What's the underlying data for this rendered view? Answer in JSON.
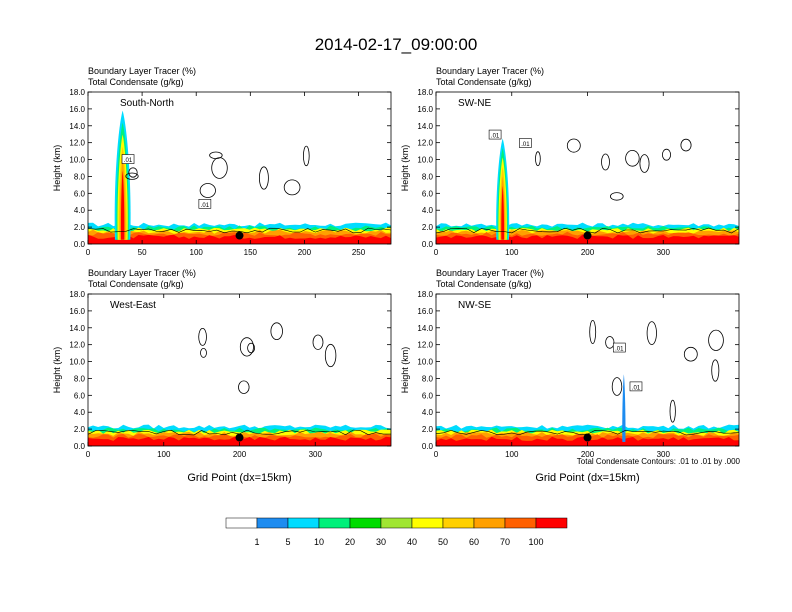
{
  "title": "2014-02-17_09:00:00",
  "contour_note": "Total Condensate Contours: .01 to .01 by .000",
  "colorbar": {
    "colors": [
      "#ffffff",
      "#1e8cf0",
      "#00dcff",
      "#00f07a",
      "#00dc00",
      "#a0e632",
      "#ffff00",
      "#ffd000",
      "#ffa000",
      "#ff6000",
      "#ff0000"
    ],
    "labels": [
      "1",
      "5",
      "10",
      "20",
      "30",
      "40",
      "50",
      "60",
      "70",
      "100"
    ]
  },
  "chart_data": [
    {
      "type": "heatmap",
      "name": "South-North",
      "title_left": "Boundary Layer Tracer",
      "title_left_units": "(%)",
      "subtitle_left": "Total Condensate",
      "subtitle_left_units": "(g/kg)",
      "panel_label": "South-North",
      "ylabel": "Height (km)",
      "xlabel": "",
      "xlim": [
        0,
        280
      ],
      "ylim": [
        0,
        18
      ],
      "xticks": [
        0,
        50,
        100,
        150,
        200,
        250
      ],
      "yticks": [
        "0.0",
        "2.0",
        "4.0",
        "6.0",
        "8.0",
        "10.0",
        "12.0",
        "14.0",
        "16.0",
        "18.0"
      ],
      "contour_labels": [
        {
          "x": 37,
          "y": 10.0,
          "t": ".01"
        },
        {
          "x": 108,
          "y": 4.7,
          "t": ".01"
        }
      ],
      "marker_x": 140,
      "plume_x": 32,
      "plume_top_km": 15.8
    },
    {
      "type": "heatmap",
      "name": "SW-NE",
      "title_left": "Boundary Layer Tracer",
      "title_left_units": "(%)",
      "subtitle_left": "Total Condensate",
      "subtitle_left_units": "(g/kg)",
      "panel_label": "SW-NE",
      "ylabel": "Height (km)",
      "xlabel": "",
      "xlim": [
        0,
        400
      ],
      "ylim": [
        0,
        18
      ],
      "xticks": [
        0,
        100,
        200,
        300
      ],
      "yticks": [
        "0.0",
        "2.0",
        "4.0",
        "6.0",
        "8.0",
        "10.0",
        "12.0",
        "14.0",
        "16.0",
        "18.0"
      ],
      "contour_labels": [
        {
          "x": 78,
          "y": 12.9,
          "t": ".01"
        },
        {
          "x": 118,
          "y": 11.9,
          "t": ".01"
        }
      ],
      "marker_x": 200,
      "plume_x": 88,
      "plume_top_km": 12.5
    },
    {
      "type": "heatmap",
      "name": "West-East",
      "title_left": "Boundary Layer Tracer",
      "title_left_units": "(%)",
      "subtitle_left": "Total Condensate",
      "subtitle_left_units": "(g/kg)",
      "panel_label": "West-East",
      "ylabel": "Height (km)",
      "xlabel": "Grid Point (dx=15km)",
      "xlim": [
        0,
        400
      ],
      "ylim": [
        0,
        18
      ],
      "xticks": [
        0,
        100,
        200,
        300
      ],
      "yticks": [
        "0.0",
        "2.0",
        "4.0",
        "6.0",
        "8.0",
        "10.0",
        "12.0",
        "14.0",
        "16.0",
        "18.0"
      ],
      "contour_labels": [],
      "marker_x": 200,
      "plume_x": null,
      "plume_top_km": 0
    },
    {
      "type": "heatmap",
      "name": "NW-SE",
      "title_left": "Boundary Layer Tracer",
      "title_left_units": "(%)",
      "subtitle_left": "Total Condensate",
      "subtitle_left_units": "(g/kg)",
      "panel_label": "NW-SE",
      "ylabel": "Height (km)",
      "xlabel": "Grid Point (dx=15km)",
      "xlim": [
        0,
        400
      ],
      "ylim": [
        0,
        18
      ],
      "xticks": [
        0,
        100,
        200,
        300
      ],
      "yticks": [
        "0.0",
        "2.0",
        "4.0",
        "6.0",
        "8.0",
        "10.0",
        "12.0",
        "14.0",
        "16.0",
        "18.0"
      ],
      "contour_labels": [
        {
          "x": 242,
          "y": 11.6,
          "t": ".01"
        },
        {
          "x": 264,
          "y": 7.0,
          "t": ".01"
        }
      ],
      "marker_x": 200,
      "plume_x": 248,
      "plume_top_km": 8.5
    }
  ]
}
